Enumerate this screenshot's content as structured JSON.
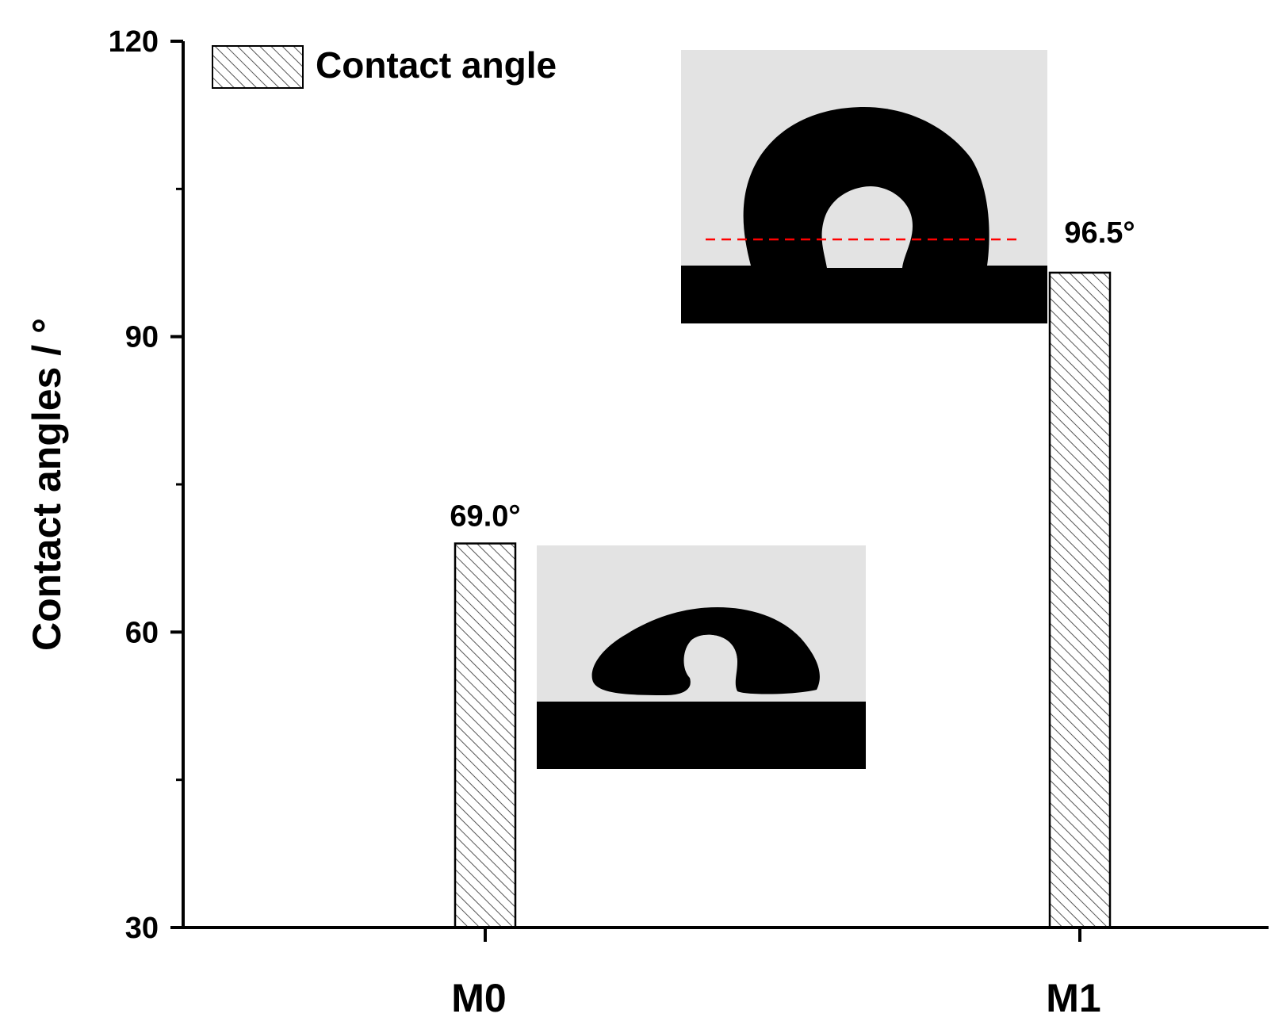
{
  "chart_data": {
    "type": "bar",
    "categories": [
      "M0",
      "M1"
    ],
    "series": [
      {
        "name": "Contact angle",
        "values": [
          69.0,
          96.5
        ]
      }
    ],
    "data_labels": [
      "69.0°",
      "96.5°"
    ],
    "ylabel": "Contact angles / °",
    "xlabel": "",
    "ylim": [
      30,
      120
    ],
    "yticks": [
      30,
      60,
      90,
      120
    ],
    "grid": false,
    "legend": "top-left",
    "bar_fill": "hatched",
    "colors": {
      "bar_stroke": "#000000",
      "hatch": "#555555",
      "droplet": "#000000",
      "photo_bg": "#e3e3e3",
      "baseline_marker": "#ff0000"
    },
    "insets": [
      {
        "name": "droplet-photo-m0",
        "category": "M0"
      },
      {
        "name": "droplet-photo-m1",
        "category": "M1"
      }
    ]
  }
}
